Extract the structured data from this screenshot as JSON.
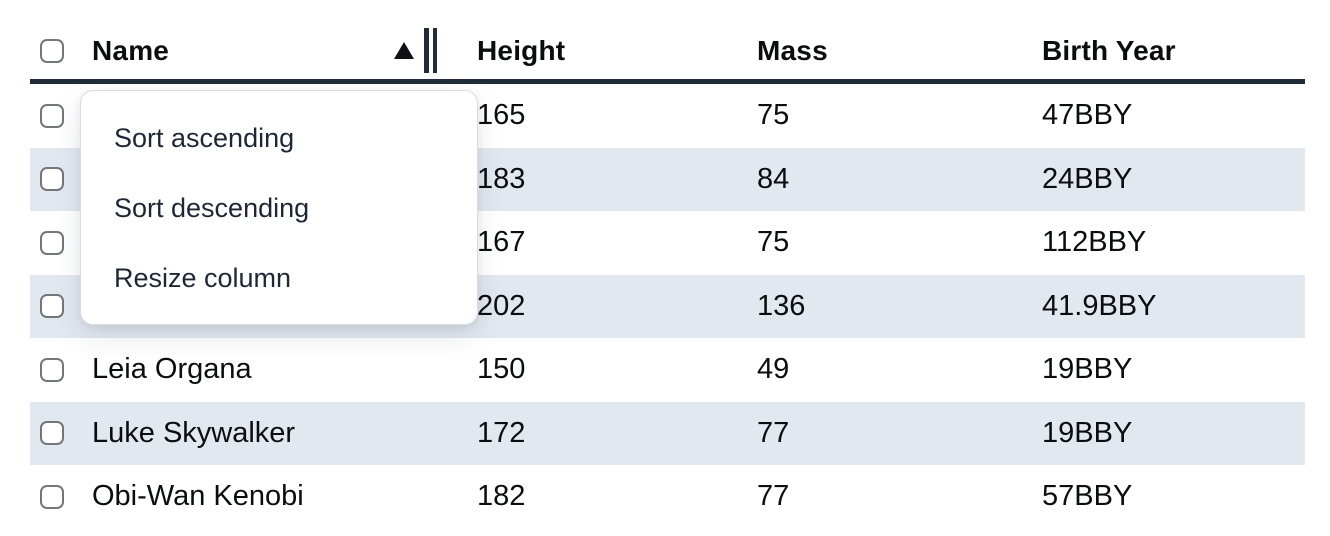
{
  "table": {
    "columns": {
      "name": "Name",
      "height": "Height",
      "mass": "Mass",
      "birth_year": "Birth Year"
    },
    "sort": {
      "column": "Name",
      "direction": "ascending"
    },
    "rows": [
      {
        "name": "",
        "height": "165",
        "mass": "75",
        "birth_year": "47BBY"
      },
      {
        "name": "",
        "height": "183",
        "mass": "84",
        "birth_year": "24BBY"
      },
      {
        "name": "",
        "height": "167",
        "mass": "75",
        "birth_year": "112BBY"
      },
      {
        "name": "",
        "height": "202",
        "mass": "136",
        "birth_year": "41.9BBY"
      },
      {
        "name": "Leia Organa",
        "height": "150",
        "mass": "49",
        "birth_year": "19BBY"
      },
      {
        "name": "Luke Skywalker",
        "height": "172",
        "mass": "77",
        "birth_year": "19BBY"
      },
      {
        "name": "Obi-Wan Kenobi",
        "height": "182",
        "mass": "77",
        "birth_year": "57BBY"
      }
    ]
  },
  "context_menu": {
    "items": {
      "sort_ascending": "Sort ascending",
      "sort_descending": "Sort descending",
      "resize_column": "Resize column"
    }
  },
  "icons": {
    "sort_ascending_indicator": "triangle-up",
    "column_resize_handle": "double-vertical-bars"
  },
  "colors": {
    "row_stripe": "#e2e8f0",
    "header_border": "#222b3a",
    "menu_text": "#1e2736",
    "checkbox_border": "#74767a"
  }
}
